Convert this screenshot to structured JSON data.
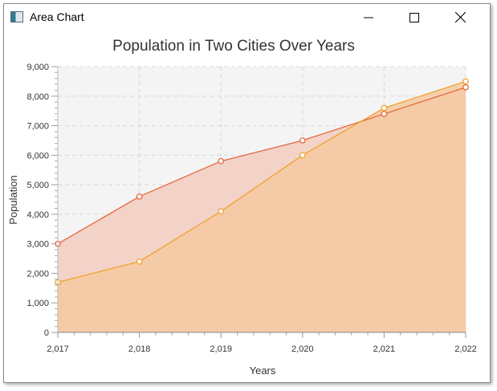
{
  "window": {
    "title": "Area Chart",
    "controls": [
      "minimize",
      "maximize",
      "close"
    ]
  },
  "chart_data": {
    "type": "area",
    "title": "Population in Two Cities Over Years",
    "xlabel": "Years",
    "ylabel": "Population",
    "x": [
      2017,
      2018,
      2019,
      2020,
      2021,
      2022
    ],
    "x_tick_labels": [
      "2,017",
      "2,018",
      "2,019",
      "2,020",
      "2,021",
      "2,022"
    ],
    "y_tick_labels": [
      "0",
      "1,000",
      "2,000",
      "3,000",
      "4,000",
      "5,000",
      "6,000",
      "7,000",
      "8,000",
      "9,000"
    ],
    "xlim": [
      2017,
      2022
    ],
    "ylim": [
      0,
      9000
    ],
    "grid": true,
    "legend": "none",
    "series": [
      {
        "values": [
          3000,
          4600,
          5800,
          6500,
          7400,
          8300
        ],
        "color": "#e5683c",
        "fill": "#f3d2c8"
      },
      {
        "values": [
          1700,
          2400,
          4100,
          6000,
          7600,
          8500
        ],
        "color": "#f2a22d",
        "fill": "#f5c9a0"
      }
    ]
  }
}
